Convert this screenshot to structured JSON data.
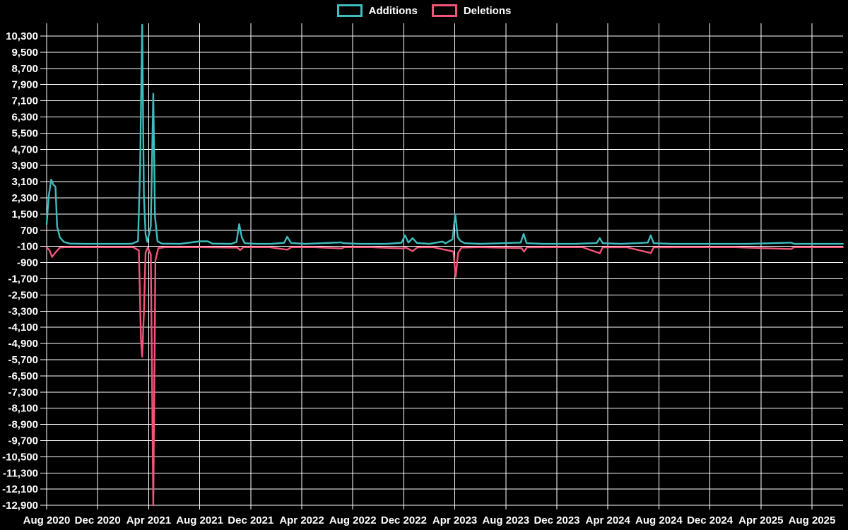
{
  "chart_data": {
    "type": "line",
    "title": "",
    "legend_position": "top-center",
    "grid": "on",
    "background_color": "#000000",
    "grid_color": "#ffffff",
    "text_color": "#ffffff",
    "x_axis": {
      "labels": [
        "Aug 2020",
        "Dec 2020",
        "Apr 2021",
        "Aug 2021",
        "Dec 2021",
        "Apr 2022",
        "Aug 2022",
        "Dec 2022",
        "Apr 2023",
        "Aug 2023",
        "Dec 2023",
        "Apr 2024",
        "Aug 2024",
        "Dec 2024",
        "Apr 2025",
        "Aug 2025"
      ],
      "tick_interval_months": 4,
      "start": "2020-08",
      "data_end": "2025-10"
    },
    "y_axis": {
      "max": 10300,
      "min": -12900,
      "step": 800,
      "tick_values": [
        10300,
        9500,
        8700,
        7900,
        7100,
        6300,
        5500,
        4700,
        3900,
        3100,
        2300,
        1500,
        700,
        -100,
        -900,
        -1700,
        -2500,
        -3300,
        -4100,
        -4900,
        -5700,
        -6500,
        -7300,
        -8100,
        -8900,
        -9700,
        -10500,
        -11300,
        -12100,
        -12900
      ]
    },
    "series": [
      {
        "name": "Additions",
        "color": "#3ebcbe",
        "points": [
          [
            "2020-08-01",
            1000
          ],
          [
            "2020-08-06",
            2400
          ],
          [
            "2020-08-12",
            3200
          ],
          [
            "2020-08-17",
            2950
          ],
          [
            "2020-08-22",
            2850
          ],
          [
            "2020-08-26",
            900
          ],
          [
            "2020-09-02",
            350
          ],
          [
            "2020-09-12",
            120
          ],
          [
            "2020-09-26",
            40
          ],
          [
            "2020-11-01",
            25
          ],
          [
            "2021-01-01",
            25
          ],
          [
            "2021-02-20",
            25
          ],
          [
            "2021-03-06",
            150
          ],
          [
            "2021-03-11",
            3800
          ],
          [
            "2021-03-16",
            10860
          ],
          [
            "2021-03-20",
            2400
          ],
          [
            "2021-03-24",
            500
          ],
          [
            "2021-03-28",
            120
          ],
          [
            "2021-04-06",
            900
          ],
          [
            "2021-04-12",
            7450
          ],
          [
            "2021-04-16",
            1400
          ],
          [
            "2021-04-22",
            150
          ],
          [
            "2021-05-02",
            40
          ],
          [
            "2021-06-15",
            25
          ],
          [
            "2021-08-01",
            150
          ],
          [
            "2021-08-20",
            150
          ],
          [
            "2021-09-01",
            40
          ],
          [
            "2021-10-15",
            25
          ],
          [
            "2021-10-28",
            120
          ],
          [
            "2021-11-04",
            1000
          ],
          [
            "2021-11-10",
            350
          ],
          [
            "2021-11-17",
            60
          ],
          [
            "2021-12-15",
            25
          ],
          [
            "2022-01-20",
            25
          ],
          [
            "2022-02-20",
            80
          ],
          [
            "2022-02-27",
            380
          ],
          [
            "2022-03-06",
            70
          ],
          [
            "2022-04-10",
            25
          ],
          [
            "2022-07-03",
            100
          ],
          [
            "2022-07-10",
            60
          ],
          [
            "2022-08-20",
            25
          ],
          [
            "2022-10-20",
            25
          ],
          [
            "2022-11-26",
            80
          ],
          [
            "2022-12-04",
            450
          ],
          [
            "2022-12-12",
            90
          ],
          [
            "2022-12-22",
            310
          ],
          [
            "2023-01-02",
            70
          ],
          [
            "2023-02-01",
            25
          ],
          [
            "2023-03-02",
            140
          ],
          [
            "2023-03-09",
            50
          ],
          [
            "2023-03-26",
            250
          ],
          [
            "2023-04-02",
            1500
          ],
          [
            "2023-04-08",
            350
          ],
          [
            "2023-04-15",
            170
          ],
          [
            "2023-04-24",
            60
          ],
          [
            "2023-06-01",
            25
          ],
          [
            "2023-09-06",
            90
          ],
          [
            "2023-09-13",
            520
          ],
          [
            "2023-09-20",
            60
          ],
          [
            "2023-11-01",
            25
          ],
          [
            "2024-01-15",
            25
          ],
          [
            "2024-03-05",
            70
          ],
          [
            "2024-03-12",
            310
          ],
          [
            "2024-03-19",
            60
          ],
          [
            "2024-05-01",
            25
          ],
          [
            "2024-07-05",
            90
          ],
          [
            "2024-07-12",
            450
          ],
          [
            "2024-07-19",
            60
          ],
          [
            "2024-09-01",
            25
          ],
          [
            "2024-12-01",
            25
          ],
          [
            "2025-03-01",
            25
          ],
          [
            "2025-06-12",
            90
          ],
          [
            "2025-06-19",
            30
          ],
          [
            "2025-08-01",
            25
          ],
          [
            "2025-10-14",
            25
          ]
        ]
      },
      {
        "name": "Deletions",
        "color": "#f3557a",
        "points": [
          [
            "2020-08-01",
            -140
          ],
          [
            "2020-08-08",
            -300
          ],
          [
            "2020-08-14",
            -620
          ],
          [
            "2020-08-22",
            -400
          ],
          [
            "2020-09-02",
            -160
          ],
          [
            "2020-09-15",
            -140
          ],
          [
            "2020-11-01",
            -140
          ],
          [
            "2021-01-01",
            -140
          ],
          [
            "2021-02-25",
            -140
          ],
          [
            "2021-03-08",
            -300
          ],
          [
            "2021-03-13",
            -4700
          ],
          [
            "2021-03-16",
            -5550
          ],
          [
            "2021-03-20",
            -3400
          ],
          [
            "2021-03-24",
            -400
          ],
          [
            "2021-03-29",
            -160
          ],
          [
            "2021-04-06",
            -500
          ],
          [
            "2021-04-12",
            -12900
          ],
          [
            "2021-04-17",
            -800
          ],
          [
            "2021-04-24",
            -180
          ],
          [
            "2021-05-10",
            -140
          ],
          [
            "2021-08-01",
            -140
          ],
          [
            "2021-10-30",
            -160
          ],
          [
            "2021-11-06",
            -280
          ],
          [
            "2021-11-14",
            -140
          ],
          [
            "2022-01-15",
            -140
          ],
          [
            "2022-02-27",
            -260
          ],
          [
            "2022-03-07",
            -140
          ],
          [
            "2022-05-01",
            -140
          ],
          [
            "2022-07-04",
            -200
          ],
          [
            "2022-07-12",
            -140
          ],
          [
            "2022-09-15",
            -140
          ],
          [
            "2022-11-28",
            -200
          ],
          [
            "2022-12-06",
            -160
          ],
          [
            "2022-12-22",
            -330
          ],
          [
            "2023-01-03",
            -150
          ],
          [
            "2023-02-10",
            -140
          ],
          [
            "2023-03-28",
            -350
          ],
          [
            "2023-04-03",
            -1600
          ],
          [
            "2023-04-09",
            -420
          ],
          [
            "2023-04-17",
            -160
          ],
          [
            "2023-06-01",
            -140
          ],
          [
            "2023-09-08",
            -180
          ],
          [
            "2023-09-14",
            -360
          ],
          [
            "2023-09-21",
            -150
          ],
          [
            "2023-12-01",
            -140
          ],
          [
            "2024-02-01",
            -140
          ],
          [
            "2024-03-12",
            -440
          ],
          [
            "2024-03-19",
            -150
          ],
          [
            "2024-05-15",
            -140
          ],
          [
            "2024-07-12",
            -430
          ],
          [
            "2024-07-19",
            -150
          ],
          [
            "2024-10-01",
            -140
          ],
          [
            "2025-02-01",
            -140
          ],
          [
            "2025-06-12",
            -230
          ],
          [
            "2025-06-19",
            -140
          ],
          [
            "2025-08-01",
            -140
          ],
          [
            "2025-10-14",
            -140
          ]
        ]
      }
    ]
  }
}
